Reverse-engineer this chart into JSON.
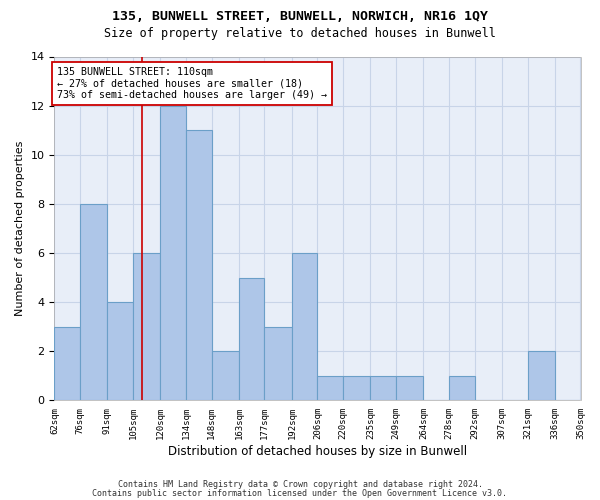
{
  "title1": "135, BUNWELL STREET, BUNWELL, NORWICH, NR16 1QY",
  "title2": "Size of property relative to detached houses in Bunwell",
  "xlabel": "Distribution of detached houses by size in Bunwell",
  "ylabel": "Number of detached properties",
  "bin_edges": [
    62,
    76,
    91,
    105,
    120,
    134,
    148,
    163,
    177,
    192,
    206,
    220,
    235,
    249,
    264,
    278,
    292,
    307,
    321,
    336,
    350
  ],
  "counts": [
    3,
    8,
    4,
    6,
    12,
    11,
    2,
    5,
    3,
    6,
    1,
    1,
    1,
    1,
    0,
    1,
    0,
    0,
    2,
    0
  ],
  "bar_color": "#aec6e8",
  "bar_edge_color": "#6b9fc8",
  "subject_value": 110,
  "vline_color": "#cc0000",
  "annotation_text": "135 BUNWELL STREET: 110sqm\n← 27% of detached houses are smaller (18)\n73% of semi-detached houses are larger (49) →",
  "annotation_box_color": "#ffffff",
  "annotation_box_edge_color": "#cc0000",
  "ylim": [
    0,
    14
  ],
  "yticks": [
    0,
    2,
    4,
    6,
    8,
    10,
    12,
    14
  ],
  "tick_labels": [
    "62sqm",
    "76sqm",
    "91sqm",
    "105sqm",
    "120sqm",
    "134sqm",
    "148sqm",
    "163sqm",
    "177sqm",
    "192sqm",
    "206sqm",
    "220sqm",
    "235sqm",
    "249sqm",
    "264sqm",
    "278sqm",
    "292sqm",
    "307sqm",
    "321sqm",
    "336sqm",
    "350sqm"
  ],
  "footer1": "Contains HM Land Registry data © Crown copyright and database right 2024.",
  "footer2": "Contains public sector information licensed under the Open Government Licence v3.0.",
  "grid_color": "#c8d4e8",
  "bg_color": "#e8eef8",
  "fig_width": 6.0,
  "fig_height": 5.0,
  "dpi": 100
}
